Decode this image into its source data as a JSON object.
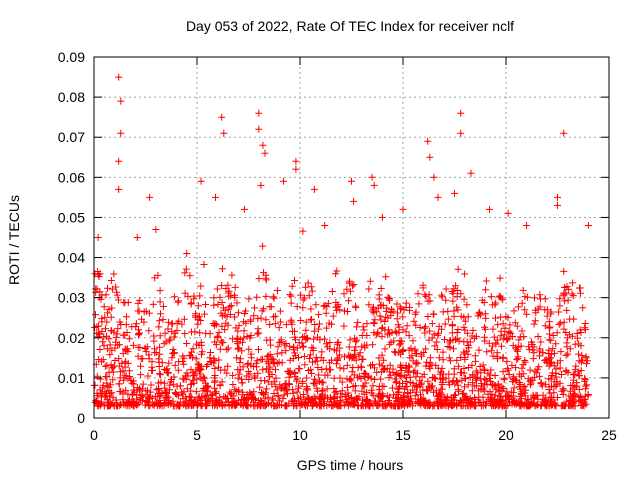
{
  "chart_data": {
    "type": "scatter",
    "title": "Day 053 of 2022, Rate Of TEC Index for receiver nclf",
    "xlabel": "GPS time / hours",
    "ylabel": "ROTI / TECUs",
    "xlim": [
      0,
      25
    ],
    "ylim": [
      0,
      0.09
    ],
    "x_ticks": [
      "0",
      "5",
      "10",
      "15",
      "20",
      "25"
    ],
    "y_ticks": [
      "0",
      "0.01",
      "0.02",
      "0.03",
      "0.04",
      "0.05",
      "0.06",
      "0.07",
      "0.08",
      "0.09"
    ],
    "grid": true,
    "legend": "none",
    "marker": "+",
    "color": "#ff0000",
    "series": [
      {
        "x_range": [
          0,
          24
        ],
        "typical_range": [
          0.003,
          0.03
        ],
        "peaks": [
          {
            "x": 0.2,
            "y": 0.045
          },
          {
            "x": 1.2,
            "y": 0.085
          },
          {
            "x": 1.3,
            "y": 0.079
          },
          {
            "x": 1.3,
            "y": 0.071
          },
          {
            "x": 1.2,
            "y": 0.064
          },
          {
            "x": 1.2,
            "y": 0.057
          },
          {
            "x": 2.1,
            "y": 0.045
          },
          {
            "x": 2.7,
            "y": 0.055
          },
          {
            "x": 3.0,
            "y": 0.047
          },
          {
            "x": 4.5,
            "y": 0.041
          },
          {
            "x": 5.2,
            "y": 0.059
          },
          {
            "x": 5.9,
            "y": 0.055
          },
          {
            "x": 6.2,
            "y": 0.075
          },
          {
            "x": 6.3,
            "y": 0.071
          },
          {
            "x": 7.3,
            "y": 0.052
          },
          {
            "x": 8.0,
            "y": 0.076
          },
          {
            "x": 8.0,
            "y": 0.072
          },
          {
            "x": 8.2,
            "y": 0.068
          },
          {
            "x": 8.3,
            "y": 0.066
          },
          {
            "x": 8.1,
            "y": 0.058
          },
          {
            "x": 9.2,
            "y": 0.059
          },
          {
            "x": 9.8,
            "y": 0.064
          },
          {
            "x": 9.8,
            "y": 0.062
          },
          {
            "x": 10.7,
            "y": 0.057
          },
          {
            "x": 11.2,
            "y": 0.048
          },
          {
            "x": 12.5,
            "y": 0.059
          },
          {
            "x": 12.6,
            "y": 0.054
          },
          {
            "x": 13.5,
            "y": 0.06
          },
          {
            "x": 13.6,
            "y": 0.058
          },
          {
            "x": 14.0,
            "y": 0.05
          },
          {
            "x": 15.0,
            "y": 0.052
          },
          {
            "x": 16.2,
            "y": 0.069
          },
          {
            "x": 16.3,
            "y": 0.065
          },
          {
            "x": 16.5,
            "y": 0.06
          },
          {
            "x": 16.7,
            "y": 0.055
          },
          {
            "x": 17.5,
            "y": 0.056
          },
          {
            "x": 17.8,
            "y": 0.076
          },
          {
            "x": 17.8,
            "y": 0.071
          },
          {
            "x": 18.3,
            "y": 0.061
          },
          {
            "x": 19.2,
            "y": 0.052
          },
          {
            "x": 20.1,
            "y": 0.051
          },
          {
            "x": 21.0,
            "y": 0.048
          },
          {
            "x": 22.5,
            "y": 0.055
          },
          {
            "x": 22.5,
            "y": 0.053
          },
          {
            "x": 22.8,
            "y": 0.071
          },
          {
            "x": 24.0,
            "y": 0.048
          }
        ]
      }
    ]
  }
}
